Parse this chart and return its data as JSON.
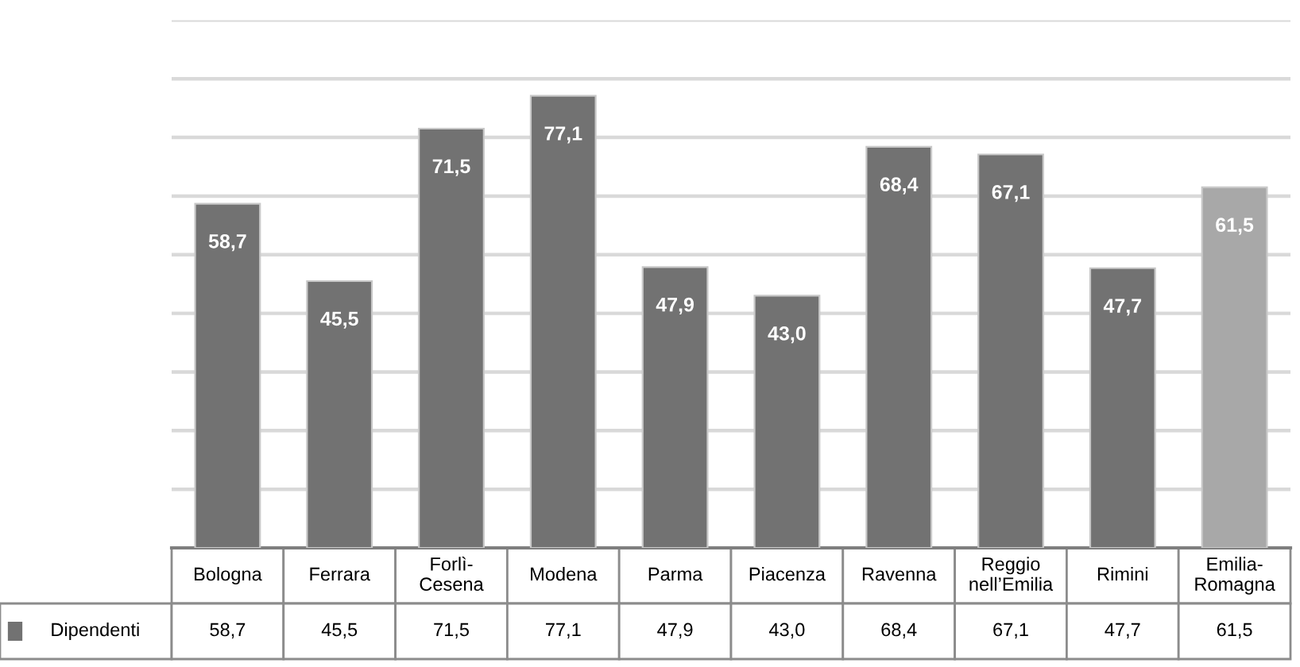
{
  "chart_data": {
    "type": "bar",
    "categories": [
      "Bologna",
      "Ferrara",
      "Forlì-\nCesena",
      "Modena",
      "Parma",
      "Piacenza",
      "Ravenna",
      "Reggio\nnell’Emilia",
      "Rimini",
      "Emilia-\nRomagna"
    ],
    "series": [
      {
        "name": "Dipendenti",
        "color": "#727272",
        "colors": [
          "#727272",
          "#727272",
          "#727272",
          "#727272",
          "#727272",
          "#727272",
          "#727272",
          "#727272",
          "#727272",
          "#a8a8a8"
        ],
        "values": [
          58.7,
          45.5,
          71.5,
          77.1,
          47.9,
          43.0,
          68.4,
          67.1,
          47.7,
          61.5
        ],
        "value_labels": [
          "58,7",
          "45,5",
          "71,5",
          "77,1",
          "47,9",
          "43,0",
          "68,4",
          "67,1",
          "47,7",
          "61,5"
        ]
      }
    ],
    "ylim": [
      0,
      90
    ],
    "yticks": [
      {
        "value": 0,
        "label": null
      },
      {
        "value": 10,
        "label": null
      },
      {
        "value": 20,
        "label": null
      },
      {
        "value": 30,
        "label": null
      },
      {
        "value": 40,
        "label": null
      },
      {
        "value": 50,
        "label": null
      },
      {
        "value": 60,
        "label": null
      },
      {
        "value": 70,
        "label": null
      },
      {
        "value": 80,
        "label": null
      },
      {
        "value": 90,
        "label": null
      }
    ],
    "grid": "y",
    "legend": "bottom"
  }
}
